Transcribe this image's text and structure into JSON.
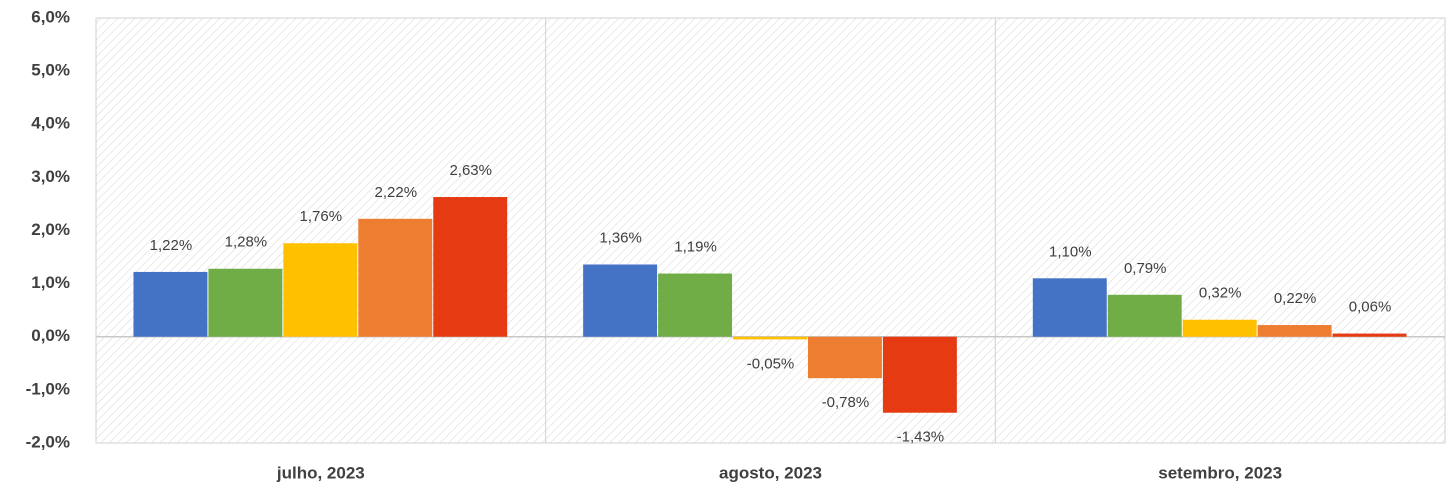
{
  "chart_data": {
    "type": "bar",
    "categories": [
      "julho, 2023",
      "agosto, 2023",
      "setembro, 2023"
    ],
    "series": [
      {
        "color": "#4472c4",
        "values": [
          1.22,
          1.36,
          1.1
        ],
        "value_labels": [
          "1,22%",
          "1,36%",
          "1,10%"
        ]
      },
      {
        "color": "#70ad47",
        "values": [
          1.28,
          1.19,
          0.79
        ],
        "value_labels": [
          "1,28%",
          "1,19%",
          "0,79%"
        ]
      },
      {
        "color": "#ffc000",
        "values": [
          1.76,
          -0.05,
          0.32
        ],
        "value_labels": [
          "1,76%",
          "-0,05%",
          "0,32%"
        ]
      },
      {
        "color": "#ed7d31",
        "values": [
          2.22,
          -0.78,
          0.22
        ],
        "value_labels": [
          "2,22%",
          "-0,78%",
          "0,22%"
        ]
      },
      {
        "color": "#e53a12",
        "values": [
          2.63,
          -1.43,
          0.06
        ],
        "value_labels": [
          "2,63%",
          "-1,43%",
          "0,06%"
        ]
      }
    ],
    "ylim": [
      -2,
      6
    ],
    "yticks": [
      {
        "value": -2,
        "label": "-2,0%"
      },
      {
        "value": -1,
        "label": "-1,0%"
      },
      {
        "value": 0,
        "label": "0,0%"
      },
      {
        "value": 1,
        "label": "1,0%"
      },
      {
        "value": 2,
        "label": "2,0%"
      },
      {
        "value": 3,
        "label": "3,0%"
      },
      {
        "value": 4,
        "label": "4,0%"
      },
      {
        "value": 5,
        "label": "5,0%"
      },
      {
        "value": 6,
        "label": "6,0%"
      }
    ]
  }
}
